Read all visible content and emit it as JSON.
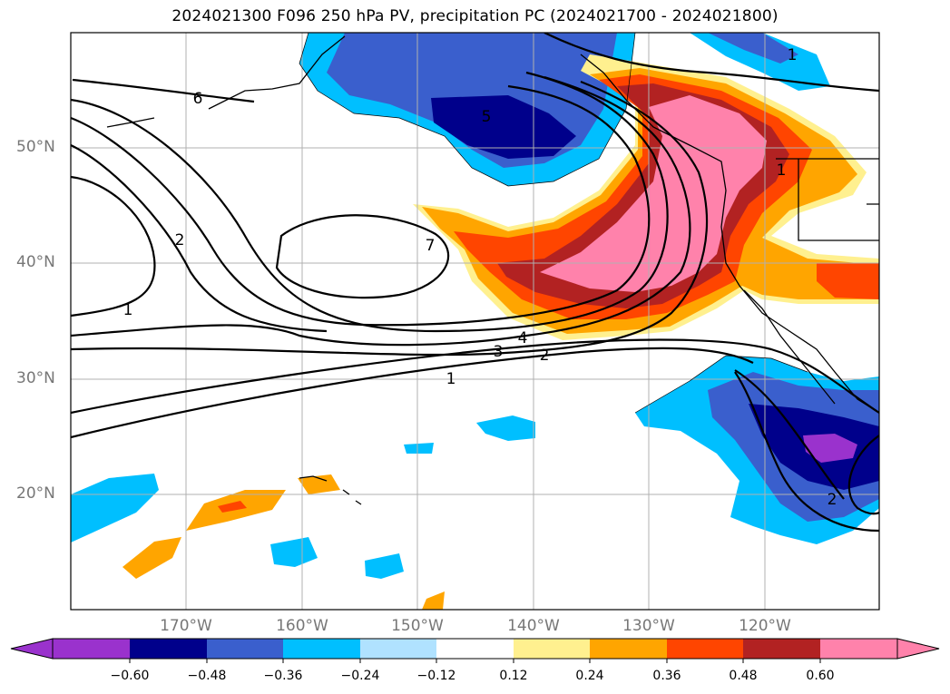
{
  "title": "2024021300 F096 250 hPa PV, precipitation PC (2024021700 - 2024021800)",
  "lat_labels": [
    "50°N",
    "40°N",
    "30°N",
    "20°N"
  ],
  "lon_labels": [
    "170°W",
    "160°W",
    "150°W",
    "140°W",
    "130°W",
    "120°W"
  ],
  "contour_labels": [
    "6",
    "5",
    "7",
    "2",
    "1",
    "4",
    "3",
    "2",
    "1",
    "1",
    "1",
    "2"
  ],
  "colorbar": {
    "ticks": [
      "−0.60",
      "−0.48",
      "−0.36",
      "−0.24",
      "−0.12",
      "0.12",
      "0.24",
      "0.36",
      "0.48",
      "0.60"
    ],
    "colors": [
      "#9a32cd",
      "#00008b",
      "#3a5fcd",
      "#00bfff",
      "#b0e2ff",
      "#ffffff",
      "#fff08f",
      "#ffa500",
      "#ff4500",
      "#b22222",
      "#ff82ab"
    ]
  }
}
